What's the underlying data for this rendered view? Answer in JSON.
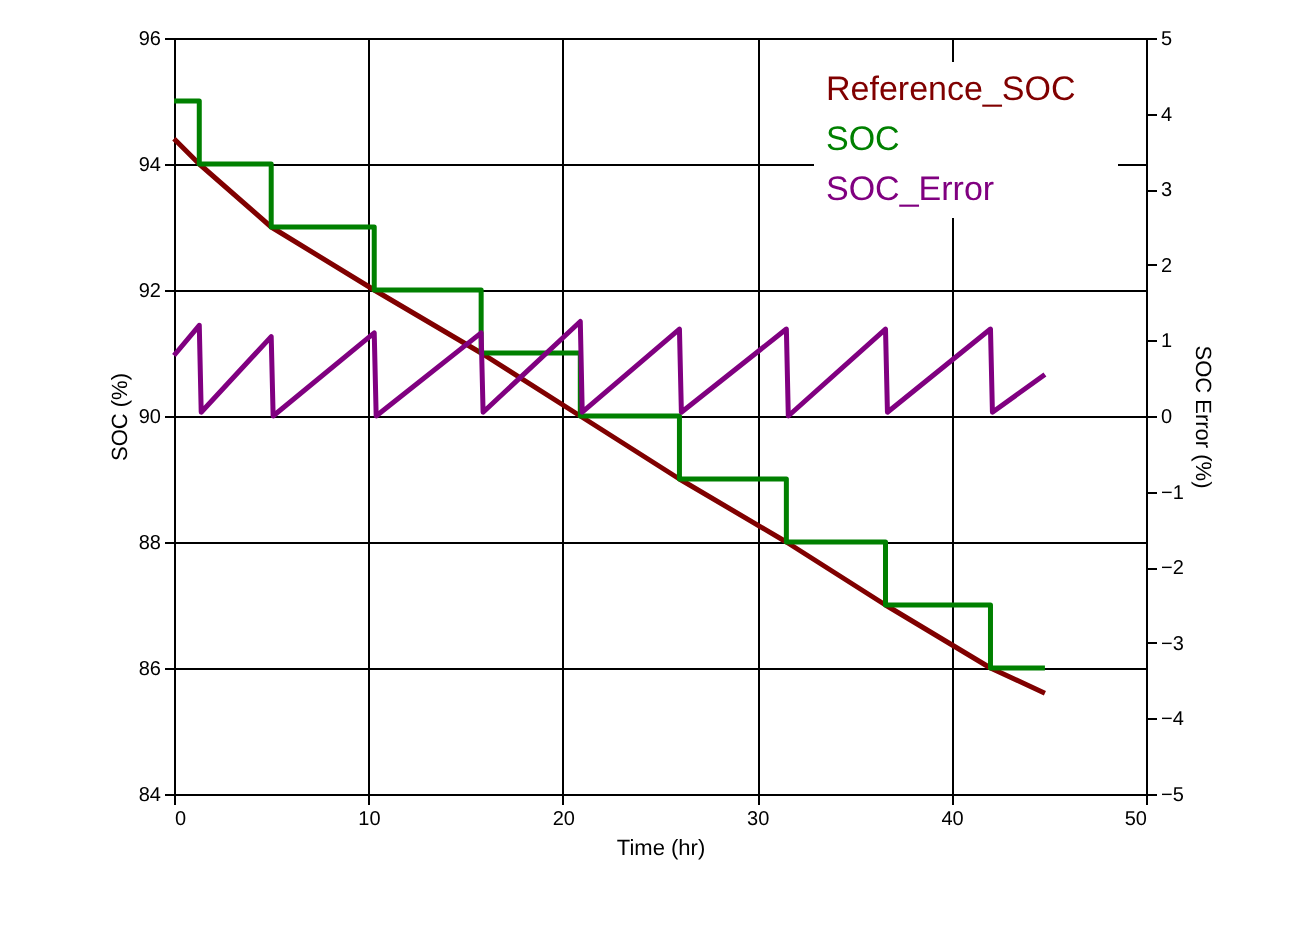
{
  "chart_data": {
    "type": "line",
    "xlabel": "Time (hr)",
    "ylabel": "SOC (%)",
    "y2label": "SOC Error (%)",
    "xlim": [
      0,
      50
    ],
    "xticks": [
      0,
      10,
      20,
      30,
      40,
      50
    ],
    "ylim": [
      84,
      96
    ],
    "yticks": [
      84,
      86,
      88,
      90,
      92,
      94,
      96
    ],
    "y2lim": [
      -5,
      5
    ],
    "y2ticks": [
      -5,
      -4,
      -3,
      -2,
      -1,
      0,
      1,
      2,
      3,
      4,
      5
    ],
    "grid": true,
    "legend": "top right",
    "marker": "none",
    "line_style": "solid",
    "series": [
      {
        "name": "Reference_SOC",
        "color": "#800000",
        "type": "line",
        "x": [
          0,
          1.3,
          5.0,
          10.3,
          15.8,
          20.9,
          26.0,
          31.5,
          36.6,
          42.0,
          44.8
        ],
        "values": [
          94.4,
          94.0,
          93.0,
          92.0,
          91.0,
          90.0,
          89.0,
          88.0,
          87.0,
          86.0,
          85.6
        ]
      },
      {
        "name": "SOC",
        "color": "#008000",
        "type": "step",
        "x": [
          0,
          1.3,
          5.0,
          10.3,
          15.8,
          20.9,
          26.0,
          31.5,
          36.6,
          42.0,
          44.8
        ],
        "values": [
          95,
          94,
          93,
          92,
          91,
          90,
          89,
          88,
          87,
          86,
          86
        ]
      },
      {
        "name": "SOC_Error",
        "color": "#800080",
        "type": "line",
        "axis": "y2",
        "x": [
          0,
          1.3,
          1.4,
          5.0,
          5.1,
          10.3,
          10.4,
          15.8,
          15.9,
          20.9,
          21.0,
          26.0,
          26.1,
          31.5,
          31.6,
          36.6,
          36.7,
          42.0,
          42.1,
          44.8
        ],
        "values": [
          0.8,
          1.2,
          0.05,
          1.05,
          0.0,
          1.1,
          0.0,
          1.1,
          0.05,
          1.25,
          0.05,
          1.15,
          0.05,
          1.15,
          0.0,
          1.15,
          0.05,
          1.15,
          0.05,
          0.55
        ]
      }
    ]
  }
}
